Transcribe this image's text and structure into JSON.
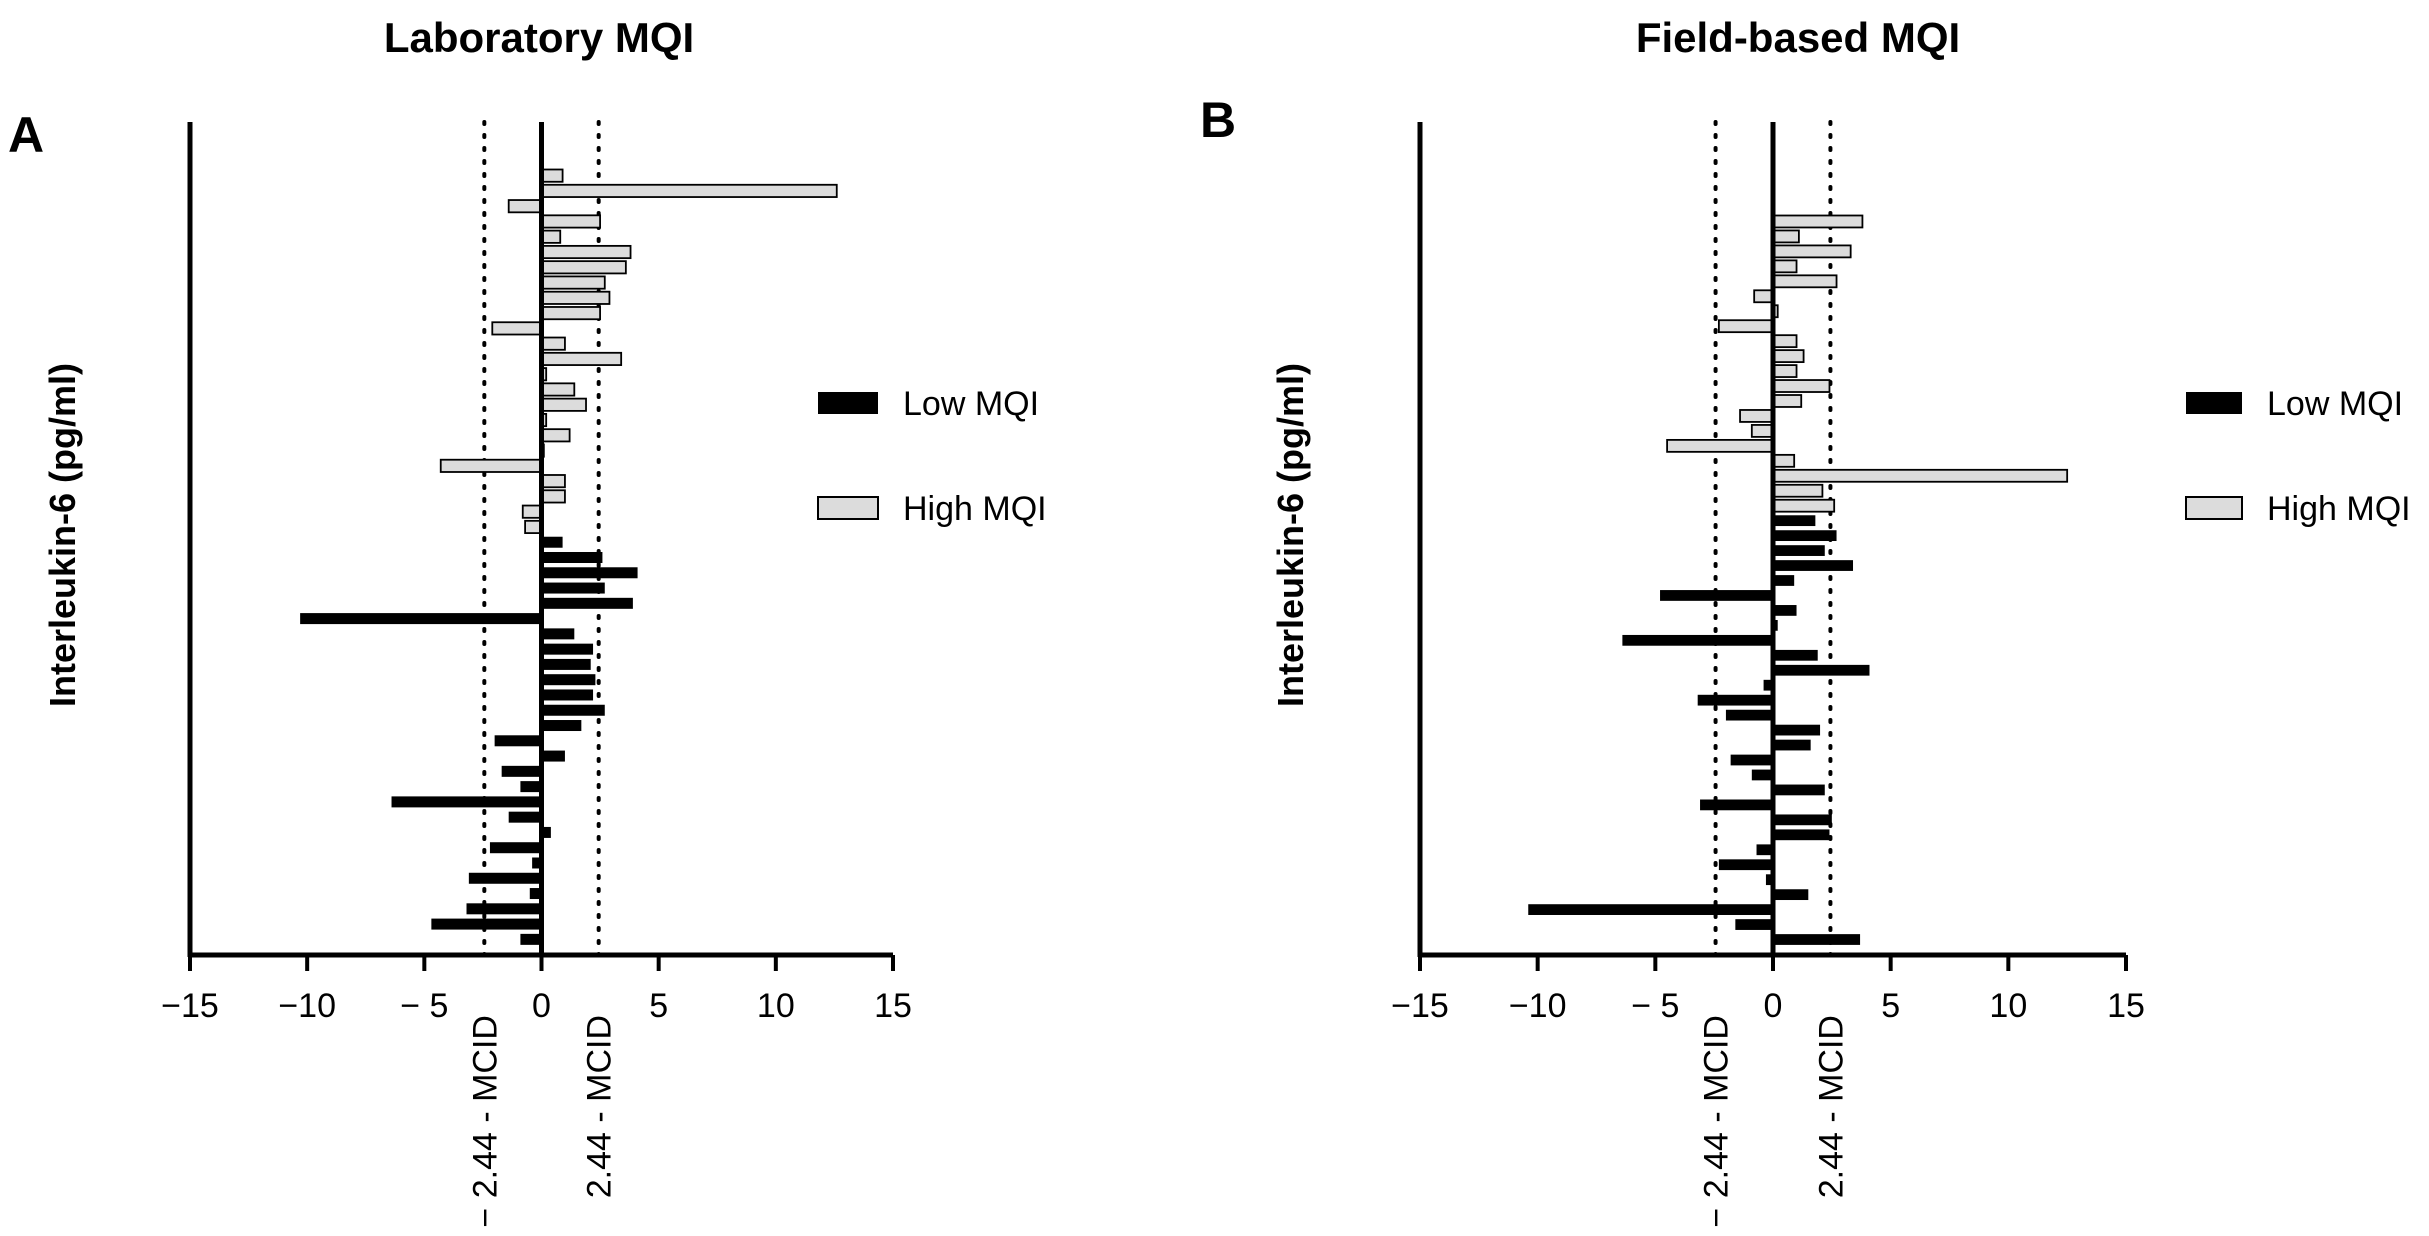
{
  "chart_data": [
    {
      "type": "bar",
      "orientation": "horizontal",
      "panel_label": "A",
      "title": "Laboratory MQI",
      "ylabel": "Interleukin-6 (pg/ml)",
      "xlabel": "",
      "xlim": [
        -15,
        15
      ],
      "xticks": [
        -15,
        -10,
        -5,
        0,
        5,
        10,
        15
      ],
      "tick_labels": [
        "−15",
        "−10",
        "− 5",
        "0",
        "5",
        "10",
        "15"
      ],
      "reference_lines": [
        {
          "value": -2.44,
          "label": "− 2.44 - MCID"
        },
        {
          "value": 2.44,
          "label": "2.44 - MCID"
        }
      ],
      "legend": {
        "position": "right",
        "entries": [
          {
            "name": "Low MQI",
            "fill": "#000000"
          },
          {
            "name": "High MQI",
            "fill": "#d9d9d9"
          }
        ]
      },
      "series": [
        {
          "name": "High MQI",
          "values": [
            0.9,
            12.6,
            -1.4,
            2.5,
            0.8,
            3.8,
            3.6,
            2.7,
            2.9,
            2.5,
            -2.1,
            1.0,
            3.4,
            0.2,
            1.4,
            1.9,
            0.2,
            1.2,
            0.1,
            -4.3,
            1.0,
            1.0,
            -0.8,
            -0.7
          ]
        },
        {
          "name": "Low MQI",
          "values": [
            0.9,
            2.6,
            4.1,
            2.7,
            3.9,
            -10.3,
            1.4,
            2.2,
            2.1,
            2.3,
            2.2,
            2.7,
            1.7,
            -2.0,
            1.0,
            -1.7,
            -0.9,
            -6.4,
            -1.4,
            0.4,
            -2.2,
            -0.4,
            -3.1,
            -0.5,
            -3.2,
            -4.7,
            -0.9
          ]
        }
      ]
    },
    {
      "type": "bar",
      "orientation": "horizontal",
      "panel_label": "B",
      "title": "Field-based MQI",
      "ylabel": "Interleukin-6 (pg/ml)",
      "xlabel": "",
      "xlim": [
        -15,
        15
      ],
      "xticks": [
        -15,
        -10,
        -5,
        0,
        5,
        10,
        15
      ],
      "tick_labels": [
        "−15",
        "−10",
        "− 5",
        "0",
        "5",
        "10",
        "15"
      ],
      "reference_lines": [
        {
          "value": -2.44,
          "label": "− 2.44 - MCID"
        },
        {
          "value": 2.44,
          "label": "2.44 - MCID"
        }
      ],
      "legend": {
        "position": "right",
        "entries": [
          {
            "name": "Low MQI",
            "fill": "#000000"
          },
          {
            "name": "High MQI",
            "fill": "#d9d9d9"
          }
        ]
      },
      "series": [
        {
          "name": "High MQI",
          "values": [
            3.8,
            1.1,
            3.3,
            1.0,
            2.7,
            -0.8,
            0.2,
            -2.3,
            1.0,
            1.3,
            1.0,
            2.4,
            1.2,
            -1.4,
            -0.9,
            -4.5,
            0.9,
            12.5,
            2.1,
            2.6
          ]
        },
        {
          "name": "Low MQI",
          "values": [
            1.8,
            2.7,
            2.2,
            3.4,
            0.9,
            -4.8,
            1.0,
            0.2,
            -6.4,
            1.9,
            4.1,
            -0.4,
            -3.2,
            -2.0,
            2.0,
            1.6,
            -1.8,
            -0.9,
            2.2,
            -3.1,
            2.5,
            2.4,
            -0.7,
            -2.3,
            -0.3,
            1.5,
            -10.4,
            -1.6,
            3.7
          ]
        }
      ]
    }
  ]
}
